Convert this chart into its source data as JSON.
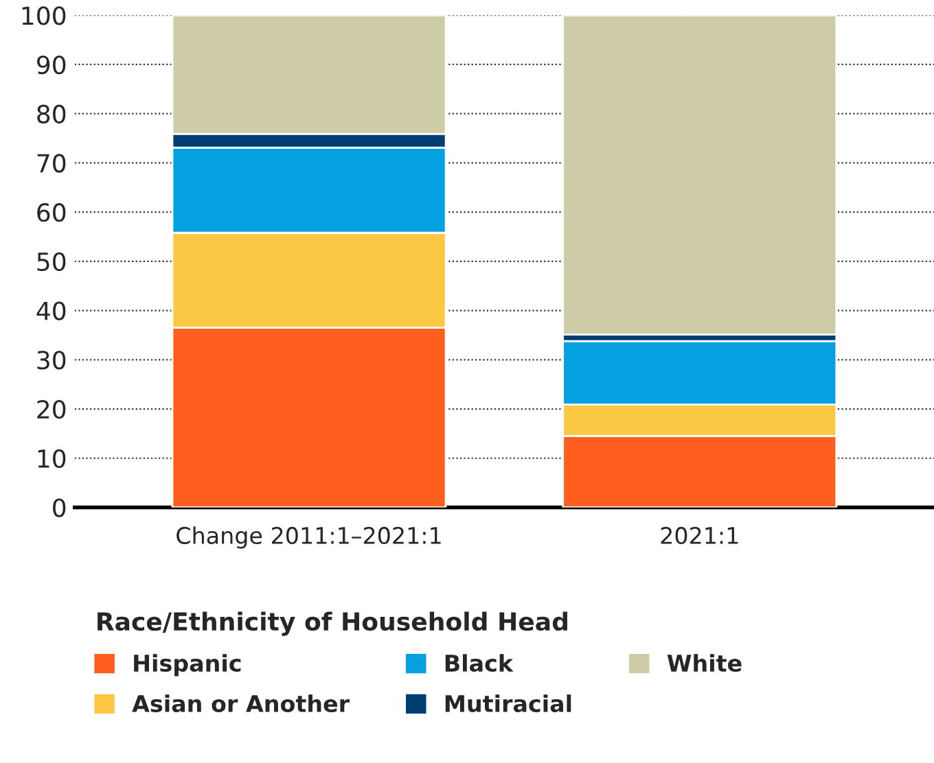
{
  "chart_data": {
    "type": "bar",
    "stacked": true,
    "legend_title": "Race/Ethnicity of Household Head",
    "categories": [
      "Change 2011:1–2021:1",
      "2021:1"
    ],
    "series": [
      {
        "name": "Hispanic",
        "color": "#fe5f1f",
        "values": [
          36.5,
          14.5
        ]
      },
      {
        "name": "Asian or Another",
        "color": "#fcc843",
        "values": [
          19.3,
          6.4
        ]
      },
      {
        "name": "Black",
        "color": "#05a0e0",
        "values": [
          17.3,
          12.9
        ]
      },
      {
        "name": "Mutiracial",
        "color": "#003d73",
        "values": [
          2.8,
          1.3
        ]
      },
      {
        "name": "White",
        "color": "#cdcca6",
        "values": [
          24.1,
          64.9
        ]
      }
    ],
    "ylim": [
      0,
      100
    ],
    "yticks": [
      0,
      10,
      20,
      30,
      40,
      50,
      60,
      70,
      80,
      90,
      100
    ],
    "grid": "y",
    "legend": "bottom"
  }
}
